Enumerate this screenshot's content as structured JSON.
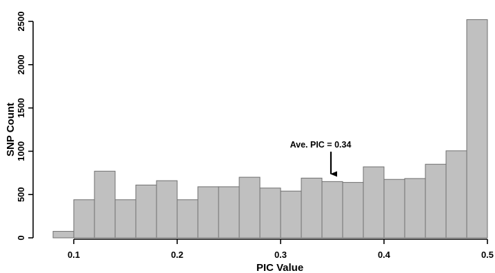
{
  "chart_data": {
    "type": "bar",
    "subtype": "histogram",
    "xlabel": "PIC Value",
    "ylabel": "SNP Count",
    "xlim": [
      0.08,
      0.5
    ],
    "ylim": [
      0,
      2500
    ],
    "x_ticks": [
      "0.1",
      "0.2",
      "0.3",
      "0.4",
      "0.5"
    ],
    "x_tick_values": [
      0.1,
      0.2,
      0.3,
      0.4,
      0.5
    ],
    "y_ticks": [
      "0",
      "500",
      "1000",
      "1500",
      "2000",
      "2500"
    ],
    "y_tick_values": [
      0,
      500,
      1000,
      1500,
      2000,
      2500
    ],
    "bin_width": 0.02,
    "bins": [
      {
        "x0": 0.08,
        "x1": 0.1,
        "value": 75
      },
      {
        "x0": 0.1,
        "x1": 0.12,
        "value": 440
      },
      {
        "x0": 0.12,
        "x1": 0.14,
        "value": 770
      },
      {
        "x0": 0.14,
        "x1": 0.16,
        "value": 440
      },
      {
        "x0": 0.16,
        "x1": 0.18,
        "value": 610
      },
      {
        "x0": 0.18,
        "x1": 0.2,
        "value": 660
      },
      {
        "x0": 0.2,
        "x1": 0.22,
        "value": 440
      },
      {
        "x0": 0.22,
        "x1": 0.24,
        "value": 590
      },
      {
        "x0": 0.24,
        "x1": 0.26,
        "value": 590
      },
      {
        "x0": 0.26,
        "x1": 0.28,
        "value": 700
      },
      {
        "x0": 0.28,
        "x1": 0.3,
        "value": 575
      },
      {
        "x0": 0.3,
        "x1": 0.32,
        "value": 540
      },
      {
        "x0": 0.32,
        "x1": 0.34,
        "value": 690
      },
      {
        "x0": 0.34,
        "x1": 0.36,
        "value": 650
      },
      {
        "x0": 0.36,
        "x1": 0.38,
        "value": 640
      },
      {
        "x0": 0.38,
        "x1": 0.4,
        "value": 820
      },
      {
        "x0": 0.4,
        "x1": 0.42,
        "value": 675
      },
      {
        "x0": 0.42,
        "x1": 0.44,
        "value": 685
      },
      {
        "x0": 0.44,
        "x1": 0.46,
        "value": 850
      },
      {
        "x0": 0.46,
        "x1": 0.48,
        "value": 1005
      },
      {
        "x0": 0.48,
        "x1": 0.5,
        "value": 2520
      }
    ],
    "annotation": {
      "text": "Ave. PIC = 0.34",
      "arrow_x": 0.35,
      "arrow_to_y": 690,
      "arrow_from_y": 1000
    },
    "grid": false,
    "legend": "none",
    "bar_color": "#c0c0c0",
    "bar_edge_color": "#6e6e6e"
  }
}
